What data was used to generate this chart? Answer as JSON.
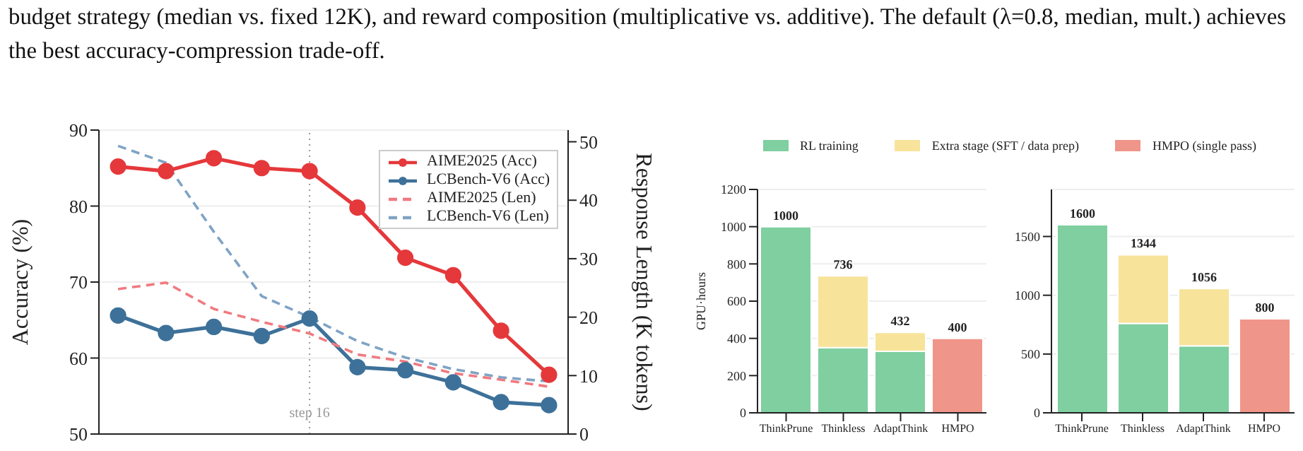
{
  "chart_data": [
    {
      "type": "line",
      "annotations": [
        "budget strategy (median vs. fixed 12K), and reward composition (multiplicative vs. additive). The default (λ=0.8, median, mult.) achieves the best accuracy-compression trade-off.",
        "step 16"
      ],
      "ylabel": "Accuracy (%)",
      "y2label": "Response Length (K tokens)",
      "categories": [
        null,
        null,
        null,
        null,
        null,
        null,
        null,
        null,
        null,
        null
      ],
      "ylim": [
        50,
        90
      ],
      "yticks": [
        50,
        60,
        70,
        80,
        90
      ],
      "y2lim": [
        0,
        52
      ],
      "y2ticks": [
        0,
        10,
        20,
        30,
        40,
        50
      ],
      "tick_labels": "y",
      "grid": true,
      "legend": "top right",
      "series": [
        {
          "name": "AIME2025 (Acc)",
          "color": "#e5383b",
          "marker": "circle",
          "line_style": "solid",
          "values": [
            85.2,
            84.6,
            86.3,
            85.0,
            84.6,
            79.8,
            73.2,
            70.9,
            63.6,
            57.8
          ]
        },
        {
          "name": "LCBench-V6 (Acc)",
          "color": "#3d7199",
          "marker": "circle",
          "line_style": "solid",
          "values": [
            65.6,
            63.3,
            64.1,
            62.9,
            65.2,
            58.8,
            58.4,
            56.8,
            54.2,
            53.8
          ]
        },
        {
          "name": "AIME2025 (Len)",
          "color": "#f07a80",
          "marker": "none",
          "line_style": "dashed",
          "axis": "y2",
          "values": [
            24.8,
            25.9,
            21.4,
            19.2,
            17.2,
            13.6,
            12.4,
            10.4,
            9.3,
            8.1
          ]
        },
        {
          "name": "LCBench-V6 (Len)",
          "color": "#7fa3c4",
          "marker": "none",
          "line_style": "dashed",
          "axis": "y2",
          "values": [
            49.3,
            46.4,
            34.6,
            23.6,
            20.0,
            15.9,
            13.1,
            11.1,
            9.7,
            9.0
          ]
        }
      ]
    },
    {
      "type": "bar",
      "stacked": true,
      "ylabel": "GPU·hours",
      "categories": [
        "ThinkPrune",
        "Thinkless",
        "AdaptThink",
        "HMPO"
      ],
      "ylim": [
        0,
        1200
      ],
      "yticks": [
        0,
        200,
        400,
        600,
        800,
        1000,
        1200
      ],
      "grid": "y",
      "legend": "top",
      "totals": [
        "1000",
        "736",
        "432",
        "400"
      ],
      "series": [
        {
          "name": "RL training",
          "color": "#7fcfa0",
          "values": [
            1000,
            350,
            330,
            null
          ]
        },
        {
          "name": "Extra stage (SFT / data prep)",
          "color": "#f7e39a",
          "values": [
            null,
            386,
            102,
            null
          ]
        },
        {
          "name": "HMPO (single pass)",
          "color": "#f0958a",
          "values": [
            null,
            null,
            null,
            400
          ]
        }
      ]
    },
    {
      "type": "bar",
      "stacked": true,
      "categories": [
        "ThinkPrune",
        "Thinkless",
        "AdaptThink",
        "HMPO"
      ],
      "ylim": [
        0,
        1900
      ],
      "yticks": [
        0,
        500,
        1000,
        1500
      ],
      "grid": "y",
      "totals": [
        "1600",
        "1344",
        "1056",
        "800"
      ],
      "series": [
        {
          "color": "#7fcfa0",
          "values": [
            1600,
            760,
            570,
            null
          ]
        },
        {
          "color": "#f7e39a",
          "values": [
            null,
            584,
            486,
            null
          ]
        },
        {
          "color": "#f0958a",
          "values": [
            null,
            null,
            null,
            800
          ]
        }
      ]
    }
  ]
}
